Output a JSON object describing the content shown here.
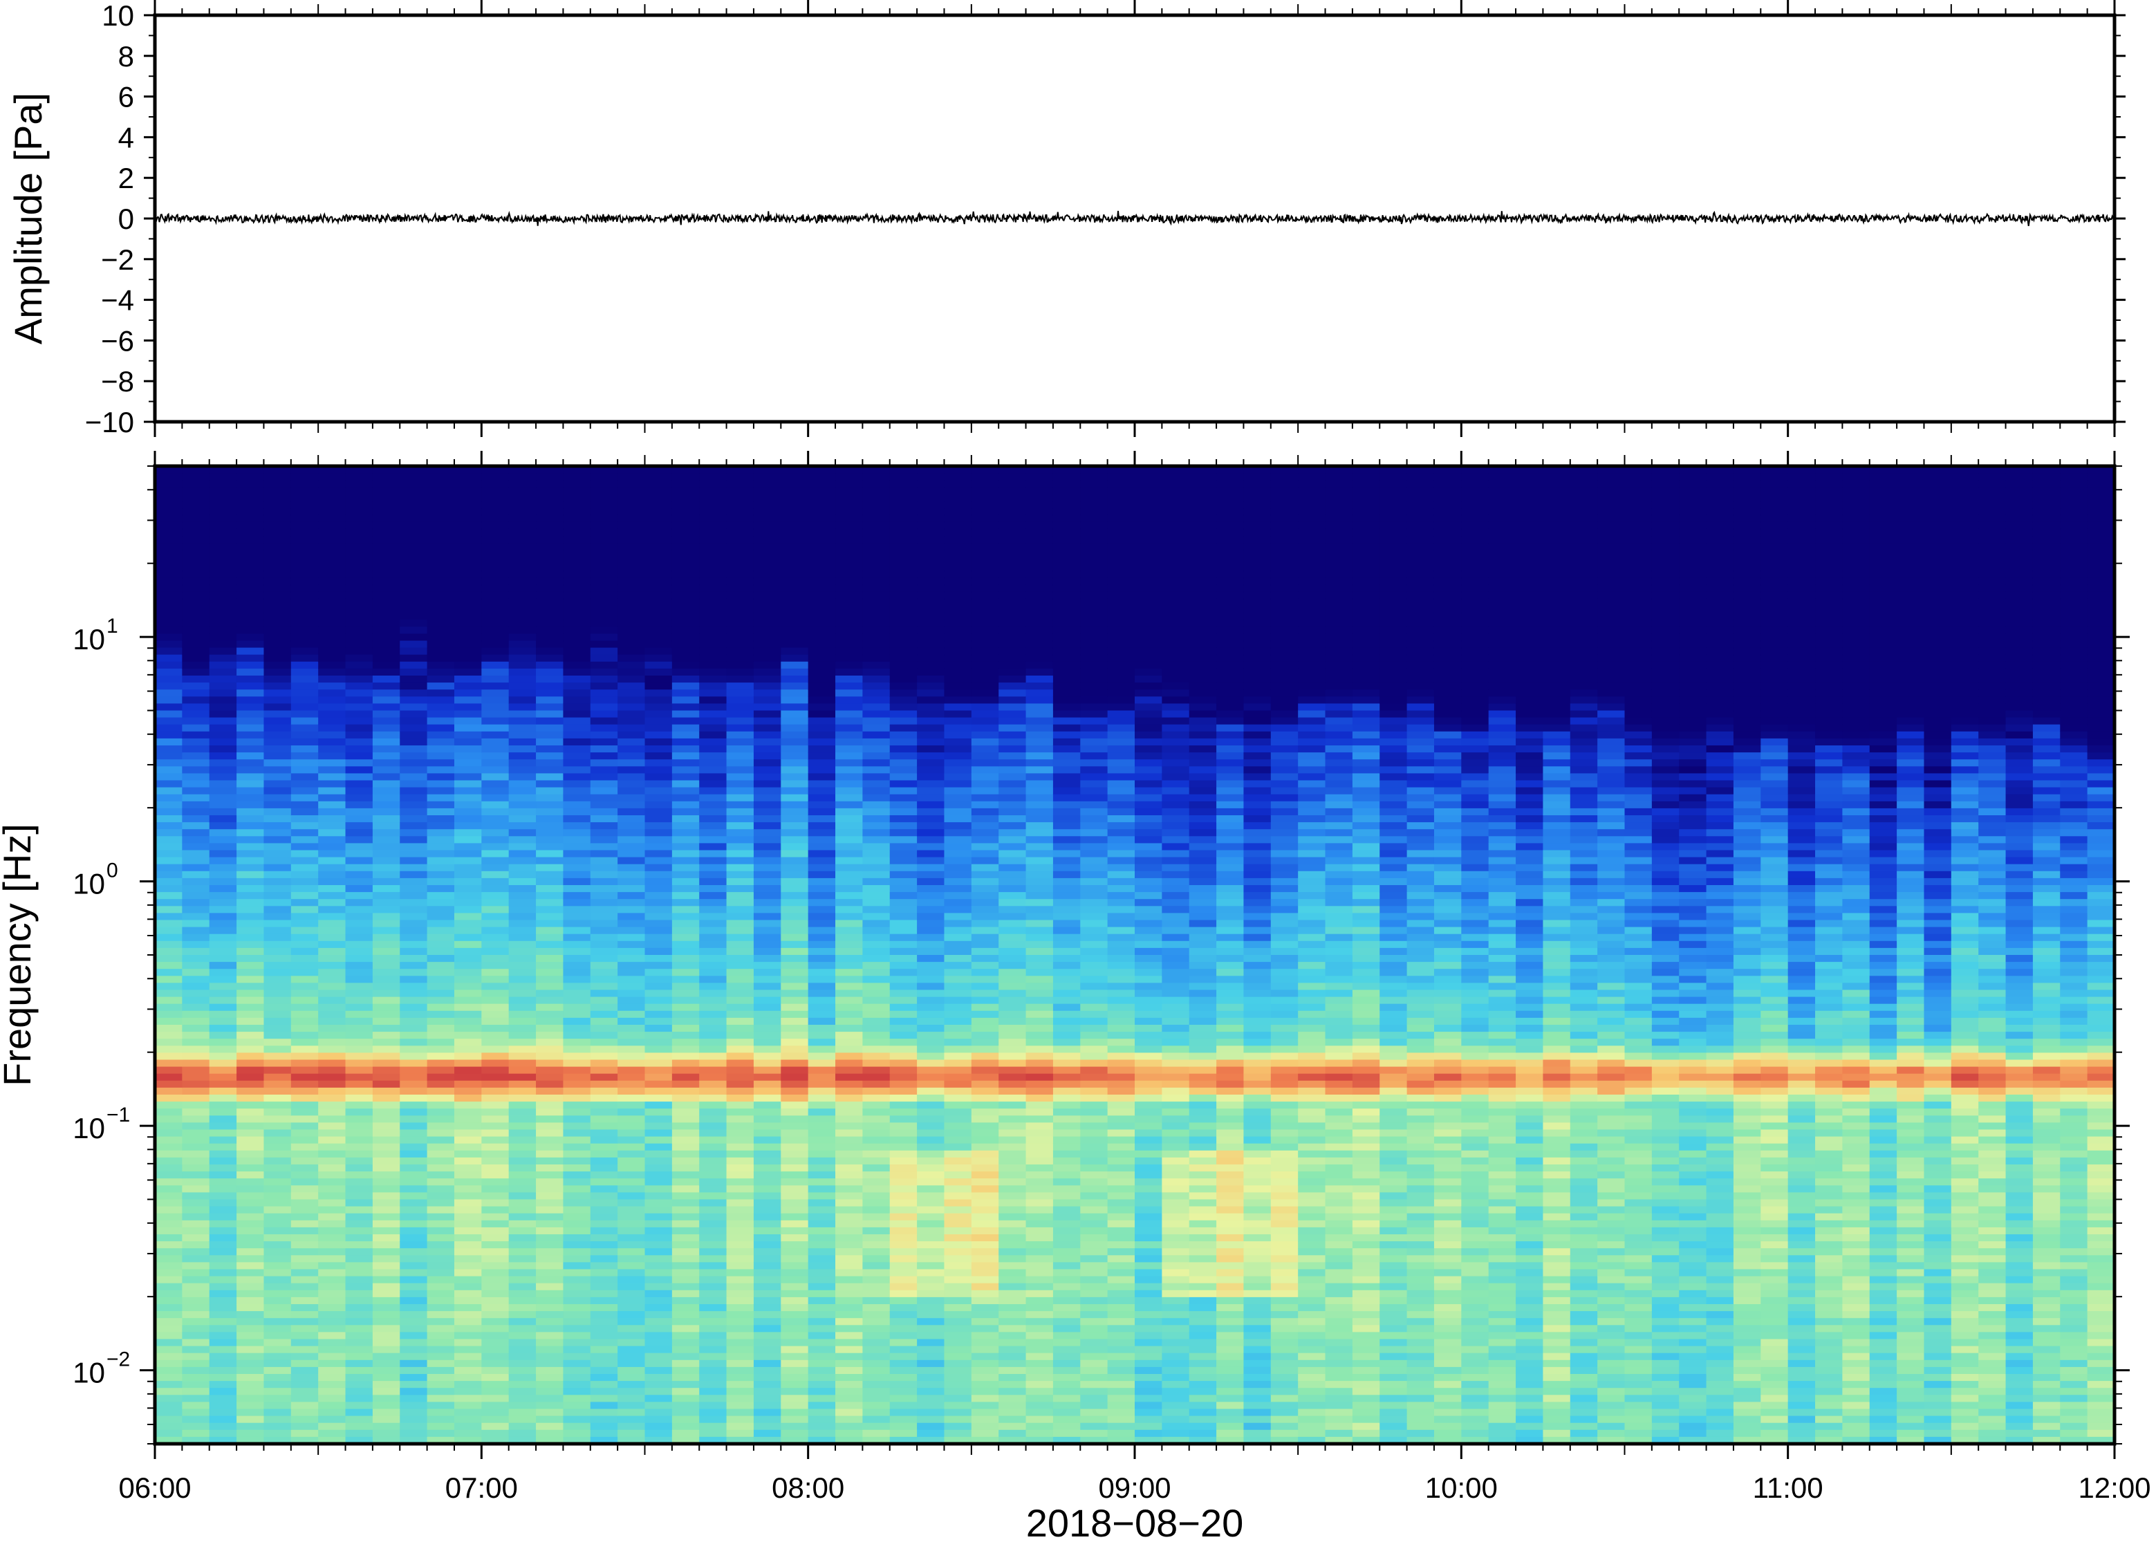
{
  "chart_data": [
    {
      "type": "line",
      "title": "",
      "xlabel": "",
      "ylabel": "Amplitude [Pa]",
      "xlim": [
        "06:00",
        "12:00"
      ],
      "ylim": [
        -10,
        10
      ],
      "yticks": [
        10,
        8,
        6,
        4,
        2,
        0,
        -2,
        -4,
        -6,
        -8,
        -10
      ],
      "ytick_labels": [
        "10",
        "8",
        "6",
        "4",
        "2",
        "0",
        "−2",
        "−4",
        "−6",
        "−8",
        "−10"
      ],
      "series": [
        {
          "color": "#000000",
          "description_values": {
            "mean": 0,
            "approx_peak_amplitude": 0.5
          }
        }
      ]
    },
    {
      "type": "heatmap",
      "title": "",
      "xlabel": "2018−08−20",
      "ylabel": "Frequency [Hz]",
      "xlim": [
        "06:00",
        "12:00"
      ],
      "ylim": [
        0.005,
        50
      ],
      "yscale": "log",
      "xtick_labels": [
        "06:00",
        "07:00",
        "08:00",
        "09:00",
        "10:00",
        "11:00",
        "12:00"
      ],
      "yticks": [
        {
          "base": "10",
          "exp": "1",
          "value": 10
        },
        {
          "base": "10",
          "exp": "0",
          "value": 1
        },
        {
          "base": "10",
          "exp": "−1",
          "value": 0.1
        },
        {
          "base": "10",
          "exp": "−2",
          "value": 0.01
        }
      ],
      "colormap": [
        "#0a0277",
        "#1030d0",
        "#2a8cf0",
        "#48d0e8",
        "#8ce8b0",
        "#e8f4a0",
        "#f8c870",
        "#f08050",
        "#d04040"
      ],
      "features": {
        "microbarom_peak_hz": 0.16,
        "upper_cutoff_hz_range": [
          3,
          12
        ]
      }
    }
  ]
}
